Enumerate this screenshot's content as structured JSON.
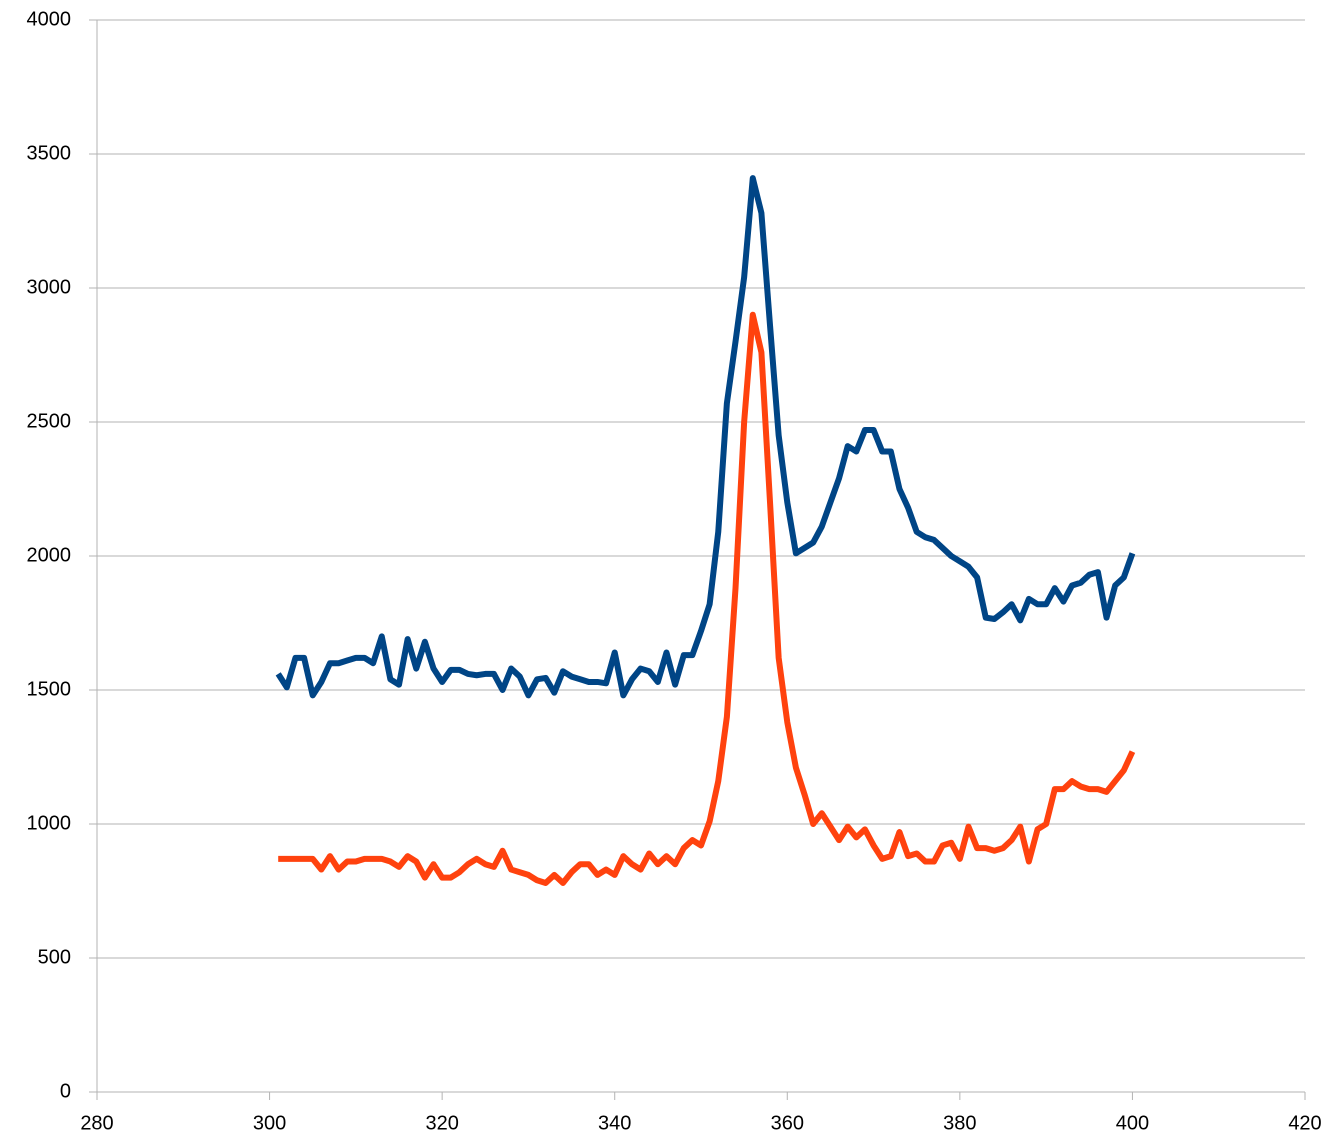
{
  "chart_data": {
    "type": "line",
    "x": [
      301,
      302,
      303,
      304,
      305,
      306,
      307,
      308,
      309,
      310,
      311,
      312,
      313,
      314,
      315,
      316,
      317,
      318,
      319,
      320,
      321,
      322,
      323,
      324,
      325,
      326,
      327,
      328,
      329,
      330,
      331,
      332,
      333,
      334,
      335,
      336,
      337,
      338,
      339,
      340,
      341,
      342,
      343,
      344,
      345,
      346,
      347,
      348,
      349,
      350,
      351,
      352,
      353,
      354,
      355,
      356,
      357,
      358,
      359,
      360,
      361,
      362,
      363,
      364,
      365,
      366,
      367,
      368,
      369,
      370,
      371,
      372,
      373,
      374,
      375,
      376,
      377,
      378,
      379,
      380,
      381,
      382,
      383,
      384,
      385,
      386,
      387,
      388,
      389,
      390,
      391,
      392,
      393,
      394,
      395,
      396,
      397,
      398,
      399,
      400
    ],
    "series": [
      {
        "color": "#004586",
        "values": [
          1560,
          1510,
          1620,
          1620,
          1480,
          1530,
          1600,
          1600,
          1610,
          1620,
          1620,
          1600,
          1700,
          1540,
          1520,
          1690,
          1580,
          1680,
          1580,
          1530,
          1575,
          1575,
          1560,
          1555,
          1560,
          1560,
          1500,
          1580,
          1550,
          1480,
          1540,
          1545,
          1490,
          1570,
          1550,
          1540,
          1530,
          1530,
          1525,
          1640,
          1480,
          1540,
          1580,
          1570,
          1530,
          1640,
          1520,
          1630,
          1630,
          1720,
          1820,
          2090,
          2570,
          2800,
          3040,
          3410,
          3280,
          2860,
          2450,
          2200,
          2010,
          2030,
          2050,
          2110,
          2200,
          2290,
          2410,
          2390,
          2470,
          2470,
          2390,
          2390,
          2250,
          2180,
          2090,
          2070,
          2060,
          2030,
          2000,
          1980,
          1960,
          1920,
          1770,
          1765,
          1790,
          1820,
          1760,
          1840,
          1820,
          1820,
          1880,
          1830,
          1890,
          1900,
          1930,
          1940,
          1770,
          1890,
          1920,
          2010
        ]
      },
      {
        "color": "#ff420e",
        "values": [
          870,
          870,
          870,
          870,
          870,
          830,
          880,
          830,
          860,
          860,
          870,
          870,
          870,
          860,
          840,
          880,
          860,
          800,
          850,
          800,
          800,
          820,
          850,
          870,
          850,
          840,
          900,
          830,
          820,
          810,
          790,
          780,
          810,
          780,
          820,
          850,
          850,
          810,
          830,
          810,
          880,
          850,
          830,
          890,
          850,
          880,
          850,
          910,
          940,
          920,
          1010,
          1160,
          1400,
          1880,
          2500,
          2900,
          2760,
          2200,
          1620,
          1380,
          1210,
          1110,
          1000,
          1040,
          990,
          940,
          990,
          950,
          980,
          920,
          870,
          880,
          970,
          880,
          890,
          860,
          860,
          920,
          930,
          870,
          990,
          910,
          910,
          900,
          910,
          940,
          990,
          860,
          980,
          1000,
          1130,
          1130,
          1160,
          1140,
          1130,
          1130,
          1120,
          1160,
          1200,
          1270
        ]
      }
    ],
    "xlim": [
      280,
      420
    ],
    "xticks": [
      280,
      300,
      320,
      340,
      360,
      380,
      400,
      420
    ],
    "ylim": [
      0,
      4000
    ],
    "yticks": [
      0,
      500,
      1000,
      1500,
      2000,
      2500,
      3000,
      3500,
      4000
    ],
    "grid": true
  }
}
